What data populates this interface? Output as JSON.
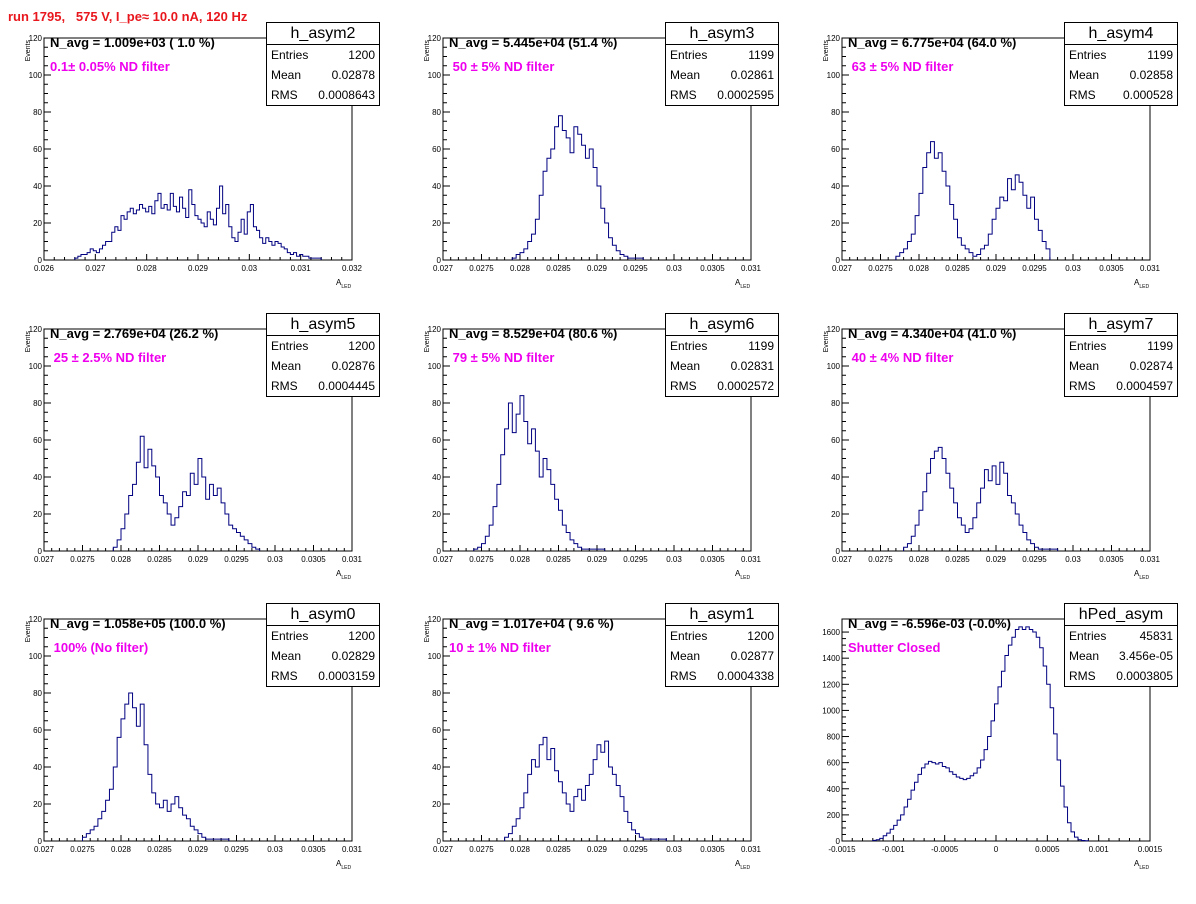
{
  "page": {
    "run_title": "run 1795,   575 V, I_pe≈ 10.0 nA, 120 Hz"
  },
  "colors": {
    "hist_line": "#000080",
    "title_red": "#e8171d",
    "filter_magenta": "#ee00ee"
  },
  "chart_data": [
    {
      "name": "h_asym2",
      "type": "histogram",
      "entries": "1200",
      "mean": "0.02878",
      "rms": "0.0008643",
      "navg_text": "N_avg = 1.009e+03 ( 1.0 %)",
      "filter_text": "0.1± 0.05% ND filter",
      "xlabel": "A",
      "xlabel_sub": "LED",
      "ylabel": "Events",
      "xlim": [
        0.026,
        0.032
      ],
      "ylim": [
        0,
        120
      ],
      "xticks": [
        0.026,
        0.027,
        0.028,
        0.029,
        0.03,
        0.031,
        0.032
      ],
      "xtick_labels": [
        "0.026",
        "0.027",
        "0.028",
        "0.029",
        "0.03",
        "0.031",
        "0.032"
      ],
      "yticks": [
        0,
        20,
        40,
        60,
        80,
        100,
        120
      ],
      "ytick_labels": [
        "0",
        "20",
        "40",
        "60",
        "80",
        "100",
        "120"
      ],
      "bin_edges": [
        0.0266,
        0.0314
      ],
      "counts": [
        1,
        2,
        3,
        3,
        4,
        6,
        5,
        4,
        6,
        8,
        10,
        10,
        15,
        18,
        16,
        24,
        22,
        26,
        28,
        25,
        27,
        30,
        28,
        26,
        29,
        25,
        32,
        36,
        28,
        30,
        27,
        36,
        29,
        26,
        34,
        28,
        23,
        38,
        30,
        24,
        22,
        20,
        18,
        26,
        22,
        19,
        28,
        40,
        25,
        30,
        18,
        12,
        10,
        15,
        22,
        14,
        26,
        30,
        18,
        16,
        12,
        9,
        12,
        10,
        8,
        10,
        9,
        7,
        6,
        4,
        3,
        4,
        2,
        3,
        2,
        2,
        1,
        1,
        1,
        1
      ]
    },
    {
      "name": "h_asym3",
      "type": "histogram",
      "entries": "1199",
      "mean": "0.02861",
      "rms": "0.0002595",
      "navg_text": "N_avg = 5.445e+04 (51.4 %)",
      "filter_text": " 50 ± 5% ND filter",
      "xlabel": "A",
      "xlabel_sub": "LED",
      "ylabel": "Events",
      "xlim": [
        0.027,
        0.031
      ],
      "ylim": [
        0,
        120
      ],
      "xticks": [
        0.027,
        0.0275,
        0.028,
        0.0285,
        0.029,
        0.0295,
        0.03,
        0.0305,
        0.031
      ],
      "xtick_labels": [
        "0.027",
        "0.0275",
        "0.028",
        "0.0285",
        "0.029",
        "0.0295",
        "0.03",
        "0.0305",
        "0.031"
      ],
      "yticks": [
        0,
        20,
        40,
        60,
        80,
        100,
        120
      ],
      "ytick_labels": [
        "0",
        "20",
        "40",
        "60",
        "80",
        "100",
        "120"
      ],
      "bin_edges": [
        0.0279,
        0.0296
      ],
      "counts": [
        1,
        3,
        4,
        6,
        10,
        14,
        22,
        35,
        48,
        55,
        60,
        72,
        78,
        70,
        66,
        58,
        72,
        68,
        62,
        55,
        60,
        50,
        40,
        28,
        20,
        12,
        8,
        5,
        3,
        2,
        1,
        1,
        1,
        1
      ]
    },
    {
      "name": "h_asym4",
      "type": "histogram",
      "entries": "1199",
      "mean": "0.02858",
      "rms": "0.000528",
      "navg_text": "N_avg = 6.775e+04 (64.0 %)",
      "filter_text": " 63 ± 5% ND filter",
      "xlabel": "A",
      "xlabel_sub": "LED",
      "ylabel": "Events",
      "xlim": [
        0.027,
        0.031
      ],
      "ylim": [
        0,
        120
      ],
      "xticks": [
        0.027,
        0.0275,
        0.028,
        0.0285,
        0.029,
        0.0295,
        0.03,
        0.0305,
        0.031
      ],
      "xtick_labels": [
        "0.027",
        "0.0275",
        "0.028",
        "0.0285",
        "0.029",
        "0.0295",
        "0.03",
        "0.0305",
        "0.031"
      ],
      "yticks": [
        0,
        20,
        40,
        60,
        80,
        100,
        120
      ],
      "ytick_labels": [
        "0",
        "20",
        "40",
        "60",
        "80",
        "100",
        "120"
      ],
      "bin_edges": [
        0.0277,
        0.0297
      ],
      "counts": [
        2,
        4,
        6,
        10,
        14,
        24,
        36,
        50,
        58,
        64,
        55,
        58,
        48,
        40,
        30,
        22,
        12,
        8,
        6,
        4,
        2,
        3,
        6,
        8,
        14,
        22,
        28,
        34,
        32,
        44,
        38,
        46,
        42,
        35,
        28,
        34,
        22,
        16,
        10,
        6
      ]
    },
    {
      "name": "h_asym5",
      "type": "histogram",
      "entries": "1200",
      "mean": "0.02876",
      "rms": "0.0004445",
      "navg_text": "N_avg = 2.769e+04 (26.2 %)",
      "filter_text": " 25 ± 2.5% ND filter",
      "xlabel": "A",
      "xlabel_sub": "LED",
      "ylabel": "Events",
      "xlim": [
        0.027,
        0.031
      ],
      "ylim": [
        0,
        120
      ],
      "xticks": [
        0.027,
        0.0275,
        0.028,
        0.0285,
        0.029,
        0.0295,
        0.03,
        0.0305,
        0.031
      ],
      "xtick_labels": [
        "0.027",
        "0.0275",
        "0.028",
        "0.0285",
        "0.029",
        "0.0295",
        "0.03",
        "0.0305",
        "0.031"
      ],
      "yticks": [
        0,
        20,
        40,
        60,
        80,
        100,
        120
      ],
      "ytick_labels": [
        "0",
        "20",
        "40",
        "60",
        "80",
        "100",
        "120"
      ],
      "bin_edges": [
        0.0279,
        0.0298
      ],
      "counts": [
        2,
        6,
        12,
        20,
        30,
        36,
        48,
        62,
        45,
        55,
        46,
        40,
        30,
        26,
        20,
        14,
        18,
        24,
        32,
        30,
        42,
        36,
        50,
        40,
        28,
        36,
        30,
        34,
        26,
        20,
        14,
        12,
        10,
        8,
        6,
        4,
        2,
        1
      ]
    },
    {
      "name": "h_asym6",
      "type": "histogram",
      "entries": "1199",
      "mean": "0.02831",
      "rms": "0.0002572",
      "navg_text": "N_avg = 8.529e+04 (80.6 %)",
      "filter_text": " 79 ± 5% ND filter",
      "xlabel": "A",
      "xlabel_sub": "LED",
      "ylabel": "Events",
      "xlim": [
        0.027,
        0.031
      ],
      "ylim": [
        0,
        120
      ],
      "xticks": [
        0.027,
        0.0275,
        0.028,
        0.0285,
        0.029,
        0.0295,
        0.03,
        0.0305,
        0.031
      ],
      "xtick_labels": [
        "0.027",
        "0.0275",
        "0.028",
        "0.0285",
        "0.029",
        "0.0295",
        "0.03",
        "0.0305",
        "0.031"
      ],
      "yticks": [
        0,
        20,
        40,
        60,
        80,
        100,
        120
      ],
      "ytick_labels": [
        "0",
        "20",
        "40",
        "60",
        "80",
        "100",
        "120"
      ],
      "bin_edges": [
        0.0274,
        0.0291
      ],
      "counts": [
        1,
        2,
        4,
        8,
        14,
        24,
        36,
        52,
        66,
        80,
        64,
        74,
        84,
        70,
        58,
        66,
        54,
        40,
        50,
        44,
        36,
        28,
        22,
        14,
        10,
        6,
        4,
        2,
        1,
        1,
        1,
        1,
        1,
        1
      ]
    },
    {
      "name": "h_asym7",
      "type": "histogram",
      "entries": "1199",
      "mean": "0.02874",
      "rms": "0.0004597",
      "navg_text": "N_avg = 4.340e+04 (41.0 %)",
      "filter_text": " 40 ± 4% ND filter",
      "xlabel": "A",
      "xlabel_sub": "LED",
      "ylabel": "Events",
      "xlim": [
        0.027,
        0.031
      ],
      "ylim": [
        0,
        120
      ],
      "xticks": [
        0.027,
        0.0275,
        0.028,
        0.0285,
        0.029,
        0.0295,
        0.03,
        0.0305,
        0.031
      ],
      "xtick_labels": [
        "0.027",
        "0.0275",
        "0.028",
        "0.0285",
        "0.029",
        "0.0295",
        "0.03",
        "0.0305",
        "0.031"
      ],
      "yticks": [
        0,
        20,
        40,
        60,
        80,
        100,
        120
      ],
      "ytick_labels": [
        "0",
        "20",
        "40",
        "60",
        "80",
        "100",
        "120"
      ],
      "bin_edges": [
        0.0278,
        0.0298
      ],
      "counts": [
        2,
        4,
        8,
        14,
        22,
        32,
        42,
        50,
        54,
        56,
        50,
        42,
        34,
        26,
        18,
        14,
        10,
        12,
        18,
        26,
        34,
        44,
        38,
        46,
        36,
        48,
        42,
        30,
        26,
        20,
        14,
        10,
        6,
        4,
        2,
        1,
        1,
        1,
        1,
        1
      ]
    },
    {
      "name": "h_asym0",
      "type": "histogram",
      "entries": "1200",
      "mean": "0.02829",
      "rms": "0.0003159",
      "navg_text": "N_avg = 1.058e+05 (100.0 %)",
      "filter_text": " 100% (No filter)",
      "xlabel": "A",
      "xlabel_sub": "LED",
      "ylabel": "Events",
      "xlim": [
        0.027,
        0.031
      ],
      "ylim": [
        0,
        120
      ],
      "xticks": [
        0.027,
        0.0275,
        0.028,
        0.0285,
        0.029,
        0.0295,
        0.03,
        0.0305,
        0.031
      ],
      "xtick_labels": [
        "0.027",
        "0.0275",
        "0.028",
        "0.0285",
        "0.029",
        "0.0295",
        "0.03",
        "0.0305",
        "0.031"
      ],
      "yticks": [
        0,
        20,
        40,
        60,
        80,
        100,
        120
      ],
      "ytick_labels": [
        "0",
        "20",
        "40",
        "60",
        "80",
        "100",
        "120"
      ],
      "bin_edges": [
        0.0275,
        0.0294
      ],
      "counts": [
        2,
        4,
        6,
        8,
        12,
        16,
        22,
        28,
        40,
        56,
        66,
        74,
        80,
        72,
        62,
        74,
        52,
        36,
        26,
        20,
        18,
        22,
        16,
        20,
        24,
        18,
        14,
        12,
        8,
        6,
        4,
        2,
        1,
        1,
        1,
        1,
        1,
        1
      ]
    },
    {
      "name": "h_asym1",
      "type": "histogram",
      "entries": "1200",
      "mean": "0.02877",
      "rms": "0.0004338",
      "navg_text": "N_avg = 1.017e+04 ( 9.6 %)",
      "filter_text": "10 ± 1% ND filter",
      "xlabel": "A",
      "xlabel_sub": "LED",
      "ylabel": "Events",
      "xlim": [
        0.027,
        0.031
      ],
      "ylim": [
        0,
        120
      ],
      "xticks": [
        0.027,
        0.0275,
        0.028,
        0.0285,
        0.029,
        0.0295,
        0.03,
        0.0305,
        0.031
      ],
      "xtick_labels": [
        "0.027",
        "0.0275",
        "0.028",
        "0.0285",
        "0.029",
        "0.0295",
        "0.03",
        "0.0305",
        "0.031"
      ],
      "yticks": [
        0,
        20,
        40,
        60,
        80,
        100,
        120
      ],
      "ytick_labels": [
        "0",
        "20",
        "40",
        "60",
        "80",
        "100",
        "120"
      ],
      "bin_edges": [
        0.0278,
        0.0299
      ],
      "counts": [
        2,
        4,
        8,
        12,
        18,
        26,
        36,
        44,
        40,
        52,
        56,
        44,
        50,
        38,
        32,
        26,
        20,
        16,
        24,
        28,
        22,
        30,
        36,
        44,
        52,
        48,
        54,
        40,
        36,
        30,
        24,
        16,
        10,
        6,
        4,
        2,
        1,
        1,
        1,
        1,
        1,
        1
      ]
    },
    {
      "name": "hPed_asym",
      "type": "histogram",
      "entries": "45831",
      "mean": "3.456e-05",
      "rms": "0.0003805",
      "navg_text": "N_avg = -6.596e-03 (-0.0%)",
      "filter_text": "Shutter Closed",
      "xlabel": "A",
      "xlabel_sub": "LED",
      "ylabel": "",
      "xlim": [
        -0.0015,
        0.0015
      ],
      "ylim": [
        0,
        1700
      ],
      "xticks": [
        -0.0015,
        -0.001,
        -0.0005,
        0,
        0.0005,
        0.001,
        0.0015
      ],
      "xtick_labels": [
        "-0.0015",
        "-0.001",
        "-0.0005",
        "0",
        "0.0005",
        "0.001",
        "0.0015"
      ],
      "yticks": [
        0,
        200,
        400,
        600,
        800,
        1000,
        1200,
        1400,
        1600
      ],
      "ytick_labels": [
        "0",
        "200",
        "400",
        "600",
        "800",
        "1000",
        "1200",
        "1400",
        "1600"
      ],
      "bin_edges": [
        -0.0012,
        0.0009
      ],
      "counts": [
        5,
        10,
        20,
        40,
        60,
        90,
        120,
        160,
        200,
        260,
        320,
        390,
        450,
        510,
        560,
        590,
        610,
        600,
        590,
        600,
        570,
        560,
        530,
        510,
        490,
        480,
        470,
        480,
        500,
        520,
        560,
        620,
        700,
        800,
        920,
        1050,
        1180,
        1300,
        1420,
        1500,
        1560,
        1620,
        1640,
        1620,
        1640,
        1620,
        1600,
        1560,
        1480,
        1340,
        1200,
        1020,
        820,
        620,
        420,
        260,
        140,
        70,
        30,
        10,
        4,
        2
      ]
    }
  ]
}
